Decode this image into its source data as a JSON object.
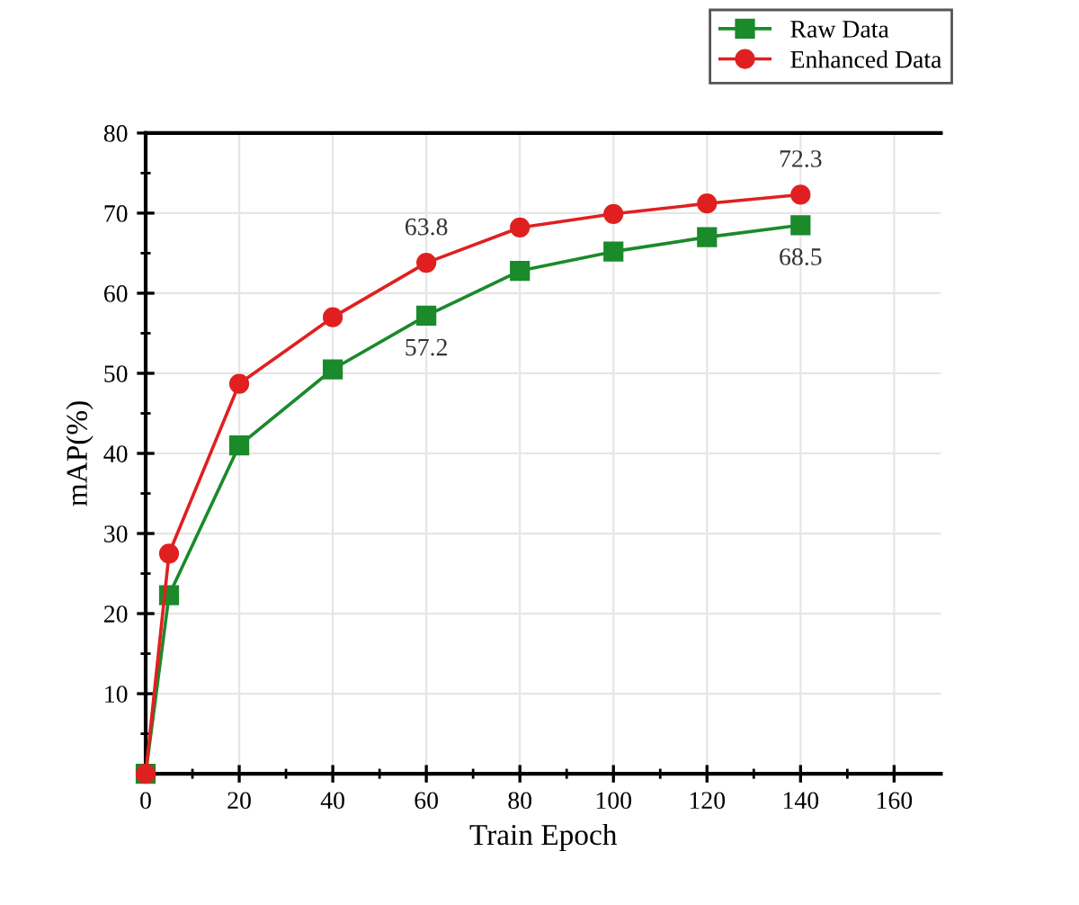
{
  "chart_data": {
    "type": "line",
    "xlabel": "Train Epoch",
    "ylabel": "mAP(%)",
    "x": [
      0,
      5,
      20,
      40,
      60,
      80,
      100,
      120,
      140
    ],
    "series": [
      {
        "name": "Raw Data",
        "color": "#1a8a2a",
        "marker": "square",
        "values": [
          0,
          22.3,
          41.0,
          50.5,
          57.2,
          62.8,
          65.2,
          67.0,
          68.5
        ],
        "value_labels": [
          null,
          null,
          null,
          null,
          "57.2",
          null,
          null,
          null,
          "68.5"
        ]
      },
      {
        "name": "Enhanced Data",
        "color": "#e02020",
        "marker": "circle",
        "values": [
          0,
          27.5,
          48.7,
          57.0,
          63.8,
          68.2,
          69.9,
          71.2,
          72.3
        ],
        "value_labels": [
          null,
          null,
          null,
          null,
          "63.8",
          null,
          null,
          null,
          "72.3"
        ]
      }
    ],
    "xlim": [
      0,
      170
    ],
    "ylim": [
      0,
      80
    ],
    "xticks": [
      0,
      {
        "value": 10,
        "label": null
      },
      20,
      {
        "value": 30,
        "label": null
      },
      40,
      {
        "value": 50,
        "label": null
      },
      60,
      {
        "value": 70,
        "label": null
      },
      80,
      {
        "value": 90,
        "label": null
      },
      100,
      {
        "value": 110,
        "label": null
      },
      120,
      {
        "value": 130,
        "label": null
      },
      140,
      {
        "value": 150,
        "label": null
      },
      160
    ],
    "yticks": [
      {
        "value": 5,
        "label": null
      },
      10,
      {
        "value": 15,
        "label": null
      },
      20,
      {
        "value": 25,
        "label": null
      },
      30,
      {
        "value": 35,
        "label": null
      },
      40,
      {
        "value": 45,
        "label": null
      },
      50,
      {
        "value": 55,
        "label": null
      },
      60,
      {
        "value": 65,
        "label": null
      },
      70,
      {
        "value": 75,
        "label": null
      },
      80
    ],
    "grid": true,
    "legend": "top right",
    "line_style": "solid"
  }
}
